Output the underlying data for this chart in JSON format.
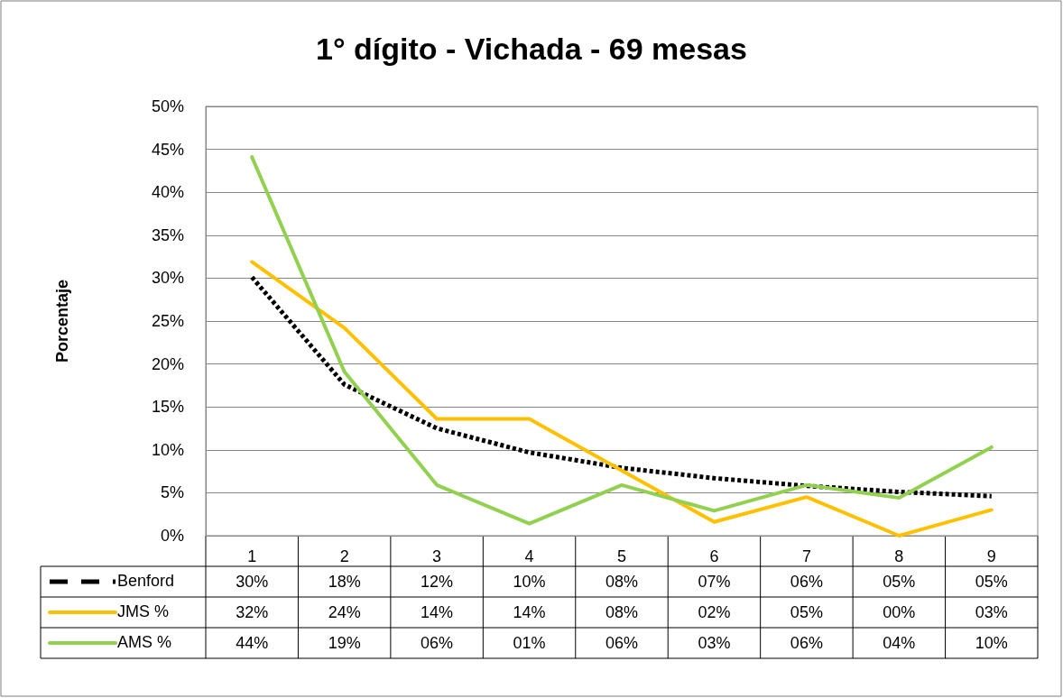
{
  "chart_data": {
    "type": "line",
    "title": "1° dígito - Vichada - 69 mesas",
    "ylabel": "Porcentaje",
    "categories": [
      "1",
      "2",
      "3",
      "4",
      "5",
      "6",
      "7",
      "8",
      "9"
    ],
    "series": [
      {
        "name": "Benford",
        "color": "#000000",
        "line_style": "dashed",
        "values": [
          30.1,
          17.6,
          12.5,
          9.7,
          7.9,
          6.7,
          5.8,
          5.1,
          4.6
        ],
        "value_labels": [
          "30%",
          "18%",
          "12%",
          "10%",
          "08%",
          "07%",
          "06%",
          "05%",
          "05%"
        ]
      },
      {
        "name": "JMS %",
        "color": "#ffc000",
        "line_style": "solid",
        "values": [
          31.9,
          24.2,
          13.6,
          13.6,
          7.6,
          1.6,
          4.5,
          0,
          3.0
        ],
        "value_labels": [
          "32%",
          "24%",
          "14%",
          "14%",
          "08%",
          "02%",
          "05%",
          "00%",
          "03%"
        ]
      },
      {
        "name": "AMS %",
        "color": "#92d050",
        "line_style": "solid",
        "values": [
          44.1,
          19.1,
          5.9,
          1.4,
          5.9,
          2.9,
          5.9,
          4.4,
          10.3
        ],
        "value_labels": [
          "44%",
          "19%",
          "06%",
          "01%",
          "06%",
          "03%",
          "06%",
          "04%",
          "10%"
        ]
      }
    ],
    "ylim": [
      0,
      50
    ],
    "yticks": [
      {
        "value": 0,
        "label": "0%"
      },
      {
        "value": 5,
        "label": "5%"
      },
      {
        "value": 10,
        "label": "10%"
      },
      {
        "value": 15,
        "label": "15%"
      },
      {
        "value": 20,
        "label": "20%"
      },
      {
        "value": 25,
        "label": "25%"
      },
      {
        "value": 30,
        "label": "30%"
      },
      {
        "value": 35,
        "label": "35%"
      },
      {
        "value": 40,
        "label": "40%"
      },
      {
        "value": 45,
        "label": "45%"
      },
      {
        "value": 50,
        "label": "50%"
      }
    ],
    "grid": "y",
    "legend": "bottom",
    "marker": "none"
  }
}
